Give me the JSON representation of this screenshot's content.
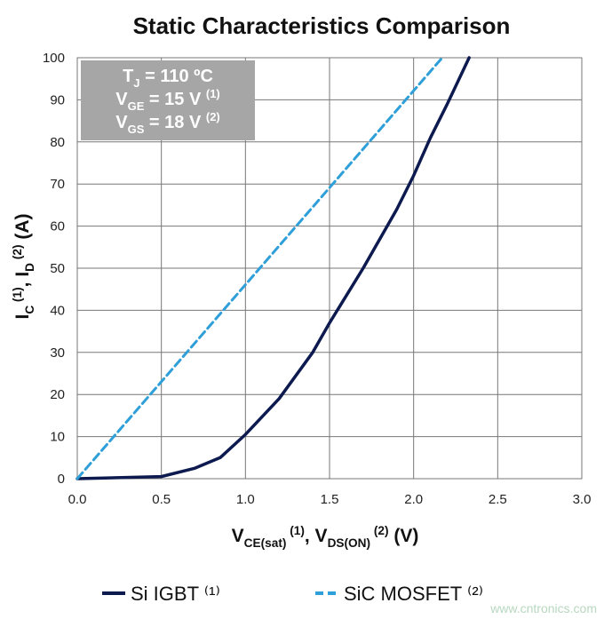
{
  "chart_data": {
    "type": "line",
    "title": "Static Characteristics Comparison",
    "x_label": [
      "V",
      "CE(sat)",
      " (1)",
      ", V",
      "DS(ON)",
      " (2)",
      " (V)"
    ],
    "y_label": [
      "I",
      "C",
      " (1)",
      ", I",
      "D",
      " (2)",
      " (A)"
    ],
    "annotation": [
      [
        "T",
        "J",
        " = 110 ºC"
      ],
      [
        "V",
        "GE",
        " = 15 V ",
        "(1)"
      ],
      [
        "V",
        "GS",
        " = 18 V ",
        "(2)"
      ]
    ],
    "watermark": "www.cntronics.com",
    "xlim": [
      0,
      3
    ],
    "ylim": [
      0,
      100
    ],
    "xticks": [
      {
        "value": 0,
        "label": "0.0"
      },
      {
        "value": 0.5,
        "label": "0.5"
      },
      {
        "value": 1,
        "label": "1.0"
      },
      {
        "value": 1.5,
        "label": "1.5"
      },
      {
        "value": 2,
        "label": "2.0"
      },
      {
        "value": 2.5,
        "label": "2.5"
      },
      {
        "value": 3,
        "label": "3.0"
      }
    ],
    "yticks": [
      0,
      10,
      20,
      30,
      40,
      50,
      60,
      70,
      80,
      90,
      100
    ],
    "grid": true,
    "legend": "bottom",
    "series": [
      {
        "name": "Si IGBT ⁽¹⁾",
        "color": "#0d1a4f",
        "dashed": false,
        "x": [
          0,
          0.5,
          0.7,
          0.85,
          1.0,
          1.2,
          1.4,
          1.5,
          1.7,
          1.9,
          2.0,
          2.1,
          2.2,
          2.33
        ],
        "values": [
          0,
          0.5,
          2.5,
          5,
          10.5,
          19,
          30,
          37,
          50,
          64,
          72,
          81,
          89,
          100
        ]
      },
      {
        "name": "SiC MOSFET ⁽²⁾",
        "color": "#2e9fd8",
        "dashed": true,
        "x": [
          0,
          2.17
        ],
        "values": [
          0,
          100
        ]
      }
    ]
  }
}
